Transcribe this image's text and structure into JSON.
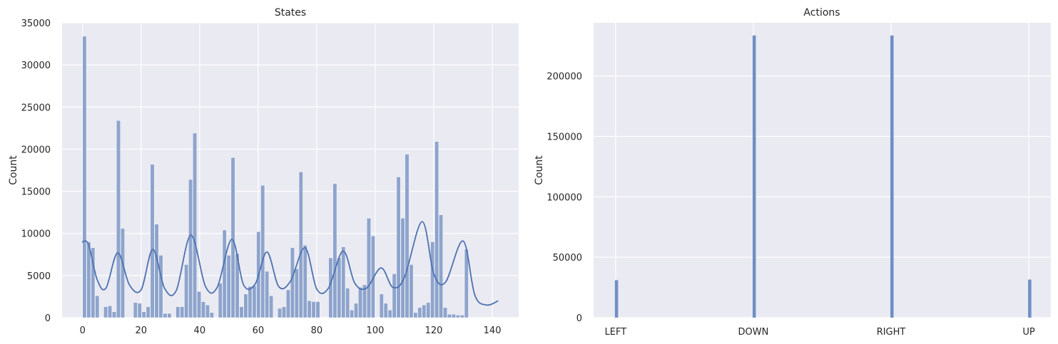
{
  "chart_data": [
    {
      "type": "histogram",
      "title": "States",
      "xlabel": "",
      "ylabel": "Count",
      "xlim": [
        -7,
        149
      ],
      "ylim": [
        0,
        35000
      ],
      "xticks": [
        0,
        20,
        40,
        60,
        80,
        100,
        120,
        140
      ],
      "yticks": [
        0,
        5000,
        10000,
        15000,
        20000,
        25000,
        30000,
        35000
      ],
      "grid": true,
      "bin_width": 1.45,
      "bins": [
        {
          "x": 0,
          "value": 33400
        },
        {
          "x": 1.45,
          "value": 9000
        },
        {
          "x": 2.9,
          "value": 8300
        },
        {
          "x": 4.35,
          "value": 2600
        },
        {
          "x": 7.25,
          "value": 1300
        },
        {
          "x": 8.7,
          "value": 1400
        },
        {
          "x": 10.15,
          "value": 700
        },
        {
          "x": 11.6,
          "value": 23400
        },
        {
          "x": 13.05,
          "value": 10600
        },
        {
          "x": 17.4,
          "value": 1800
        },
        {
          "x": 18.85,
          "value": 1700
        },
        {
          "x": 20.3,
          "value": 700
        },
        {
          "x": 21.75,
          "value": 1300
        },
        {
          "x": 23.2,
          "value": 18200
        },
        {
          "x": 24.65,
          "value": 11100
        },
        {
          "x": 26.1,
          "value": 7400
        },
        {
          "x": 27.55,
          "value": 500
        },
        {
          "x": 29.0,
          "value": 500
        },
        {
          "x": 31.9,
          "value": 1300
        },
        {
          "x": 33.35,
          "value": 1300
        },
        {
          "x": 34.8,
          "value": 6300
        },
        {
          "x": 36.25,
          "value": 16400
        },
        {
          "x": 37.7,
          "value": 21900
        },
        {
          "x": 39.15,
          "value": 3100
        },
        {
          "x": 40.6,
          "value": 1900
        },
        {
          "x": 42.05,
          "value": 1500
        },
        {
          "x": 43.5,
          "value": 600
        },
        {
          "x": 46.4,
          "value": 4100
        },
        {
          "x": 47.85,
          "value": 10400
        },
        {
          "x": 49.3,
          "value": 7400
        },
        {
          "x": 50.75,
          "value": 19000
        },
        {
          "x": 52.2,
          "value": 7600
        },
        {
          "x": 53.65,
          "value": 1300
        },
        {
          "x": 55.1,
          "value": 2800
        },
        {
          "x": 56.55,
          "value": 3700
        },
        {
          "x": 58.0,
          "value": 3800
        },
        {
          "x": 59.45,
          "value": 10200
        },
        {
          "x": 60.9,
          "value": 15700
        },
        {
          "x": 62.35,
          "value": 5500
        },
        {
          "x": 63.8,
          "value": 2600
        },
        {
          "x": 66.7,
          "value": 1100
        },
        {
          "x": 68.15,
          "value": 1300
        },
        {
          "x": 69.6,
          "value": 3300
        },
        {
          "x": 71.05,
          "value": 8300
        },
        {
          "x": 72.5,
          "value": 5800
        },
        {
          "x": 73.95,
          "value": 17300
        },
        {
          "x": 75.4,
          "value": 8600
        },
        {
          "x": 76.85,
          "value": 2000
        },
        {
          "x": 78.3,
          "value": 1900
        },
        {
          "x": 79.75,
          "value": 1900
        },
        {
          "x": 84.1,
          "value": 7100
        },
        {
          "x": 85.55,
          "value": 15900
        },
        {
          "x": 87.0,
          "value": 7100
        },
        {
          "x": 88.45,
          "value": 8400
        },
        {
          "x": 89.9,
          "value": 3500
        },
        {
          "x": 91.35,
          "value": 900
        },
        {
          "x": 92.8,
          "value": 1700
        },
        {
          "x": 94.25,
          "value": 3600
        },
        {
          "x": 95.7,
          "value": 3900
        },
        {
          "x": 97.15,
          "value": 11800
        },
        {
          "x": 98.6,
          "value": 9700
        },
        {
          "x": 101.5,
          "value": 2800
        },
        {
          "x": 102.95,
          "value": 1700
        },
        {
          "x": 104.4,
          "value": 900
        },
        {
          "x": 105.85,
          "value": 5200
        },
        {
          "x": 107.3,
          "value": 16700
        },
        {
          "x": 108.75,
          "value": 11800
        },
        {
          "x": 110.2,
          "value": 19400
        },
        {
          "x": 111.65,
          "value": 6300
        },
        {
          "x": 113.1,
          "value": 600
        },
        {
          "x": 114.55,
          "value": 1200
        },
        {
          "x": 116.0,
          "value": 1500
        },
        {
          "x": 117.45,
          "value": 1800
        },
        {
          "x": 118.9,
          "value": 9000
        },
        {
          "x": 120.35,
          "value": 20900
        },
        {
          "x": 121.8,
          "value": 12200
        },
        {
          "x": 123.25,
          "value": 1200
        },
        {
          "x": 124.7,
          "value": 400
        },
        {
          "x": 126.15,
          "value": 400
        },
        {
          "x": 127.6,
          "value": 300
        },
        {
          "x": 129.05,
          "value": 300
        },
        {
          "x": 130.5,
          "value": 8100
        }
      ],
      "kde": [
        [
          -0.2,
          9000
        ],
        [
          2,
          8700
        ],
        [
          5,
          4500
        ],
        [
          8,
          3500
        ],
        [
          12,
          7700
        ],
        [
          16,
          3900
        ],
        [
          20,
          3300
        ],
        [
          24,
          8100
        ],
        [
          28,
          3500
        ],
        [
          32,
          3200
        ],
        [
          37,
          9800
        ],
        [
          42,
          3700
        ],
        [
          46,
          3600
        ],
        [
          51,
          9300
        ],
        [
          55,
          3900
        ],
        [
          59,
          4000
        ],
        [
          63,
          7800
        ],
        [
          67,
          3700
        ],
        [
          71,
          4300
        ],
        [
          76,
          8300
        ],
        [
          80,
          3400
        ],
        [
          84,
          3500
        ],
        [
          89,
          7900
        ],
        [
          93,
          4100
        ],
        [
          97,
          3500
        ],
        [
          102,
          5900
        ],
        [
          106,
          3600
        ],
        [
          110,
          4800
        ],
        [
          116,
          11400
        ],
        [
          120,
          5200
        ],
        [
          124,
          4200
        ],
        [
          130,
          9100
        ],
        [
          134,
          2700
        ],
        [
          138,
          1500
        ],
        [
          142,
          2000
        ]
      ],
      "colors": {
        "bar": "#8ea4cc",
        "kde": "#4c72b0",
        "background": "#eaeaf2",
        "grid": "#ffffff"
      }
    },
    {
      "type": "histogram",
      "title": "Actions",
      "xlabel": "",
      "ylabel": "Count",
      "categories": [
        "LEFT",
        "DOWN",
        "RIGHT",
        "UP"
      ],
      "values": [
        31000,
        233500,
        233500,
        31500
      ],
      "ylim": [
        0,
        244000
      ],
      "yticks": [
        0,
        50000,
        100000,
        150000,
        200000
      ],
      "grid": true,
      "colors": {
        "bar": "#6f8fc4",
        "background": "#eaeaf2",
        "grid": "#ffffff"
      }
    }
  ]
}
